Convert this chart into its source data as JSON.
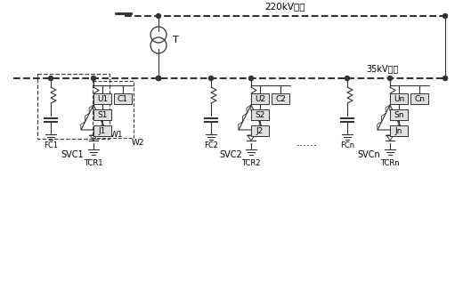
{
  "title": "220kV毛线",
  "bus35": "35kV毛线",
  "transformer_label": "T",
  "svc_labels": [
    "SVC1",
    "SVC2",
    "SVCn"
  ],
  "fc_labels": [
    "FC1",
    "FC2",
    "FCn"
  ],
  "tcr_labels": [
    "TCR1",
    "TCR2",
    "TCRn"
  ],
  "u_labels": [
    "U1",
    "U2",
    "Un"
  ],
  "c_labels": [
    "C1",
    "C2",
    "Cn"
  ],
  "s_labels": [
    "S1",
    "S2",
    "Sn"
  ],
  "j_labels": [
    "J1",
    "J2",
    "Jn"
  ],
  "w_labels": [
    "W1",
    "W2"
  ],
  "dots_label": "......",
  "bg_color": "#ffffff",
  "line_color": "#333333",
  "figsize": [
    5.2,
    3.44
  ],
  "dpi": 100
}
